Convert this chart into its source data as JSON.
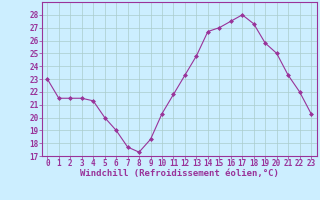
{
  "x": [
    0,
    1,
    2,
    3,
    4,
    5,
    6,
    7,
    8,
    9,
    10,
    11,
    12,
    13,
    14,
    15,
    16,
    17,
    18,
    19,
    20,
    21,
    22,
    23
  ],
  "y": [
    23.0,
    21.5,
    21.5,
    21.5,
    21.3,
    20.0,
    19.0,
    17.7,
    17.3,
    18.3,
    20.3,
    21.8,
    23.3,
    24.8,
    26.7,
    27.0,
    27.5,
    28.0,
    27.3,
    25.8,
    25.0,
    23.3,
    22.0,
    20.3
  ],
  "line_color": "#993399",
  "marker": "D",
  "marker_size": 2.0,
  "bg_color": "#cceeff",
  "grid_color": "#aacccc",
  "xlabel": "Windchill (Refroidissement éolien,°C)",
  "xlabel_color": "#993399",
  "ylim": [
    17,
    29
  ],
  "yticks": [
    17,
    18,
    19,
    20,
    21,
    22,
    23,
    24,
    25,
    26,
    27,
    28
  ],
  "xticks": [
    0,
    1,
    2,
    3,
    4,
    5,
    6,
    7,
    8,
    9,
    10,
    11,
    12,
    13,
    14,
    15,
    16,
    17,
    18,
    19,
    20,
    21,
    22,
    23
  ],
  "tick_color": "#993399",
  "spine_color": "#993399",
  "font_size_label": 6.5,
  "font_size_tick": 5.5
}
